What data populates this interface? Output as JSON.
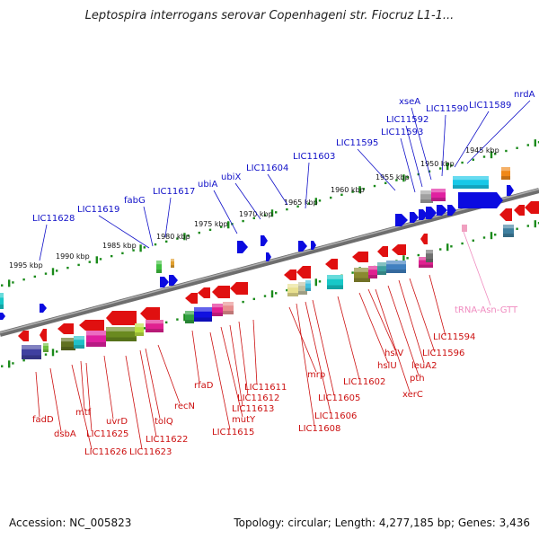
{
  "title": "Leptospira interrogans serovar Copenhageni str. Fiocruz L1-1...",
  "accession": "Accession: NC_005823",
  "summary": "Topology: circular; Length: 4,277,185 bp; Genes: 3,436",
  "colors": {
    "top_label": "#1010c8",
    "bottom_label": "#cc1010",
    "rna_label": "#f08cc0",
    "tick": "#1a8a1a",
    "backbone": "#888888"
  },
  "scale_labels": [
    "1945 kbp",
    "1950 kbp",
    "1955 kbp",
    "1960 kbp",
    "1965 kbp",
    "1970 kbp",
    "1975 kbp",
    "1980 kbp",
    "1985 kbp",
    "1990 kbp",
    "1995 kbp"
  ],
  "top_genes": [
    "nrdA",
    "LIC11589",
    "LIC11590",
    "xseA",
    "LIC11592",
    "LIC11593",
    "LIC11595",
    "LIC11603",
    "LIC11604",
    "ubiX",
    "ubiA",
    "LIC11617",
    "fabG",
    "LIC11619",
    "LIC11628"
  ],
  "bottom_genes": [
    "LIC11594",
    "LIC11596",
    "leuA2",
    "pth",
    "xerC",
    "hslV",
    "hslU",
    "LIC11602",
    "LIC11605",
    "LIC11606",
    "LIC11608",
    "mrp",
    "LIC11611",
    "LIC11612",
    "LIC11613",
    "mutY",
    "LIC11615",
    "rfaD",
    "recN",
    "tolQ",
    "LIC11622",
    "LIC11623",
    "uvrD",
    "mtf",
    "LIC11625",
    "LIC11626",
    "dsbA",
    "fadD"
  ],
  "rna_genes": [
    "tRNA-Asn-GTT"
  ]
}
